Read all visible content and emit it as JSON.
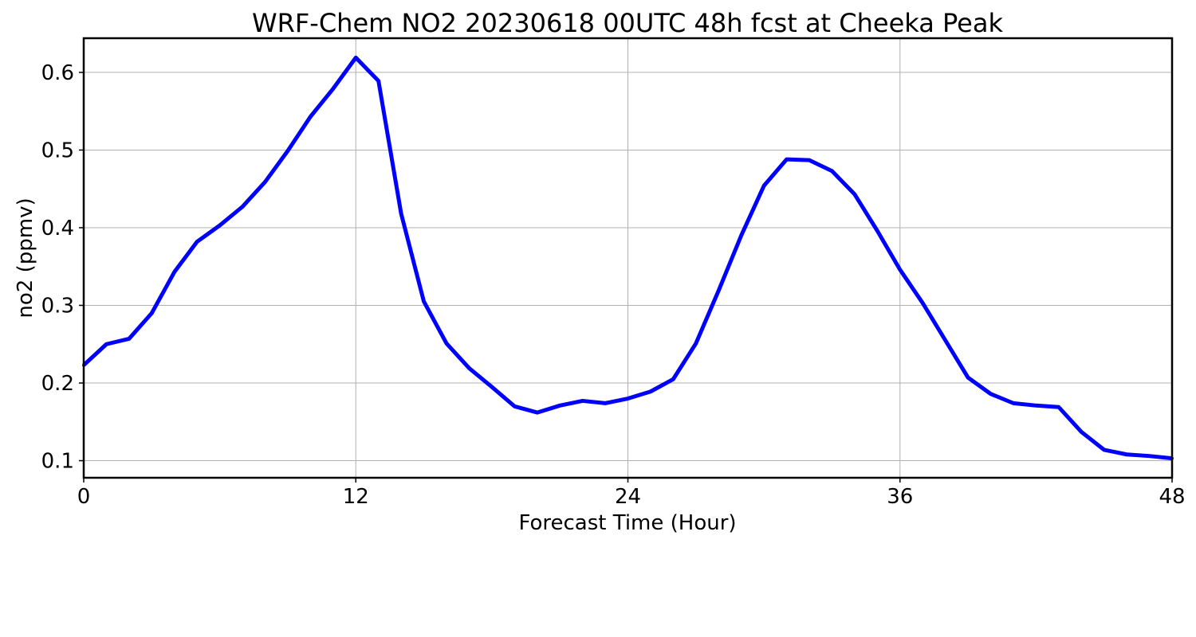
{
  "chart_data": {
    "type": "line",
    "title": "WRF-Chem NO2  20230618 00UTC 48h fcst at Cheeka Peak",
    "xlabel": "Forecast Time (Hour)",
    "ylabel": "no2  (ppmv)",
    "xlim": [
      0,
      48
    ],
    "ylim": [
      0.078,
      0.644
    ],
    "xticks": [
      0,
      12,
      24,
      36,
      48
    ],
    "xtick_labels": [
      "0",
      "12",
      "24",
      "36",
      "48"
    ],
    "yticks": [
      0.1,
      0.2,
      0.3,
      0.4,
      0.5,
      0.6
    ],
    "ytick_labels": [
      "0.1",
      "0.2",
      "0.3",
      "0.4",
      "0.5",
      "0.6"
    ],
    "grid": true,
    "series": [
      {
        "color": "#0000ff",
        "x": [
          0,
          1,
          2,
          3,
          4,
          5,
          6,
          7,
          8,
          9,
          10,
          11,
          12,
          13,
          14,
          15,
          16,
          17,
          18,
          19,
          20,
          21,
          22,
          23,
          24,
          25,
          26,
          27,
          28,
          29,
          30,
          31,
          32,
          33,
          34,
          35,
          36,
          37,
          38,
          39,
          40,
          41,
          42,
          43,
          44,
          45,
          46,
          47,
          48
        ],
        "values": [
          0.223,
          0.25,
          0.257,
          0.29,
          0.343,
          0.382,
          0.403,
          0.427,
          0.459,
          0.499,
          0.543,
          0.579,
          0.619,
          0.589,
          0.418,
          0.305,
          0.251,
          0.219,
          0.195,
          0.17,
          0.162,
          0.171,
          0.177,
          0.174,
          0.18,
          0.189,
          0.205,
          0.251,
          0.319,
          0.39,
          0.454,
          0.488,
          0.487,
          0.473,
          0.443,
          0.396,
          0.346,
          0.303,
          0.255,
          0.207,
          0.186,
          0.174,
          0.171,
          0.169,
          0.137,
          0.114,
          0.108,
          0.106,
          0.103
        ]
      }
    ]
  }
}
